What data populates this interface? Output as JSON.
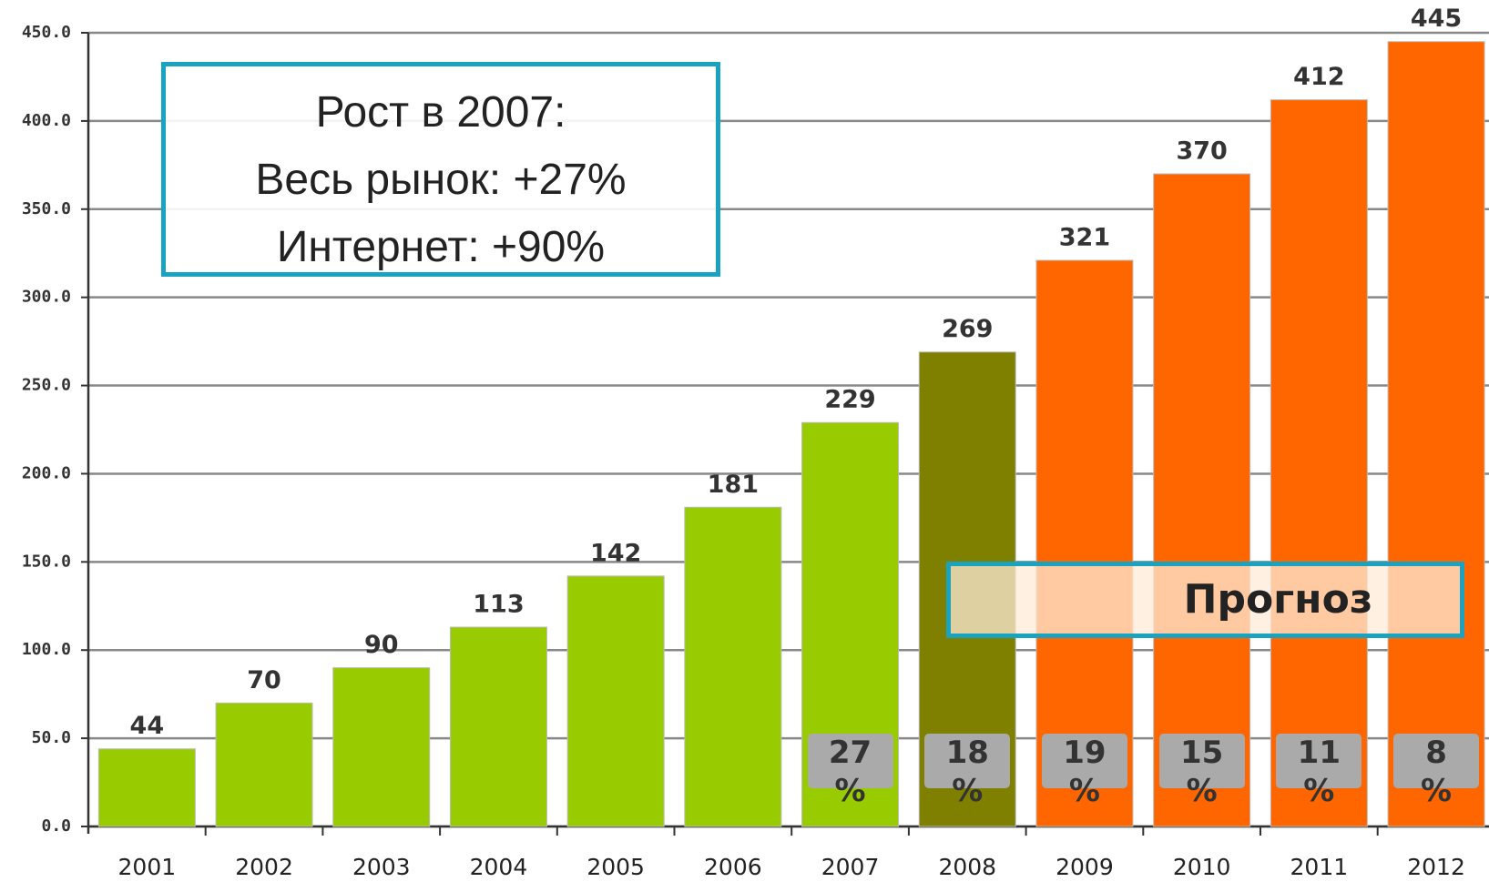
{
  "chart_data": {
    "type": "bar",
    "categories": [
      "2001",
      "2002",
      "2003",
      "2004",
      "2005",
      "2006",
      "2007",
      "2008",
      "2009",
      "2010",
      "2011",
      "2012"
    ],
    "values": [
      44,
      70,
      90,
      113,
      142,
      181,
      229,
      269,
      321,
      370,
      412,
      445
    ],
    "colors": [
      "#99cc00",
      "#99cc00",
      "#99cc00",
      "#99cc00",
      "#99cc00",
      "#99cc00",
      "#99cc00",
      "#808000",
      "#ff6600",
      "#ff6600",
      "#ff6600",
      "#ff6600"
    ],
    "ylim": [
      0,
      450
    ],
    "yticks": [
      {
        "value": 0,
        "label": "0.0"
      },
      {
        "value": 50,
        "label": "50.0"
      },
      {
        "value": 100,
        "label": "100.0"
      },
      {
        "value": 150,
        "label": "150.0"
      },
      {
        "value": 200,
        "label": "200.0"
      },
      {
        "value": 250,
        "label": "250.0"
      },
      {
        "value": 300,
        "label": "300.0"
      },
      {
        "value": 350,
        "label": "350.0"
      },
      {
        "value": 400,
        "label": "400.0"
      },
      {
        "value": 450,
        "label": "450.0"
      }
    ],
    "grid": true,
    "growth_labels": [
      null,
      null,
      null,
      null,
      null,
      null,
      "27 %",
      "18 %",
      "19 %",
      "15 %",
      "11 %",
      "8 %"
    ],
    "annotation": [
      "Рост в 2007:",
      "Весь рынок: +27%",
      "Интернет: +90%"
    ],
    "forecast_label": "Прогноз"
  }
}
